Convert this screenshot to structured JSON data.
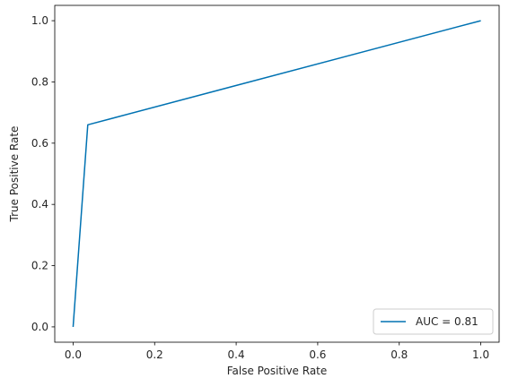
{
  "chart_data": {
    "type": "line",
    "title": "",
    "xlabel": "False Positive Rate",
    "ylabel": "True Positive Rate",
    "xlim": [
      -0.045,
      1.045
    ],
    "ylim": [
      -0.05,
      1.05
    ],
    "grid": false,
    "legend_position": "bottom-right",
    "x_ticks": [
      "0.0",
      "0.2",
      "0.4",
      "0.6",
      "0.8",
      "1.0"
    ],
    "y_ticks": [
      "0.0",
      "0.2",
      "0.4",
      "0.6",
      "0.8",
      "1.0"
    ],
    "series": [
      {
        "name": "AUC = 0.81",
        "color": "#0072b2",
        "x": [
          0.0,
          0.036,
          1.0
        ],
        "y": [
          0.0,
          0.66,
          1.0
        ]
      }
    ]
  }
}
